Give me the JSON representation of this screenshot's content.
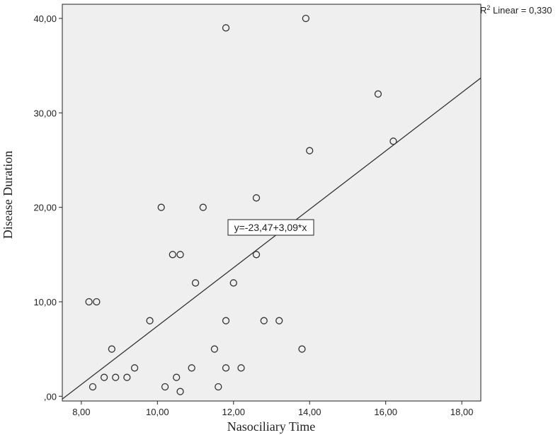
{
  "chart_data": {
    "type": "scatter",
    "xlabel": "Nasociliary Time",
    "ylabel": "Disease Duration",
    "xlim": [
      7.5,
      18.5
    ],
    "ylim": [
      -0.5,
      41.5
    ],
    "xticks": [
      8,
      10,
      12,
      14,
      16,
      18
    ],
    "xtick_labels": [
      "8,00",
      "10,00",
      "12,00",
      "14,00",
      "16,00",
      "18,00"
    ],
    "yticks": [
      0,
      10,
      20,
      30,
      40
    ],
    "ytick_labels": [
      ",00",
      "10,00",
      "20,00",
      "30,00",
      "40,00"
    ],
    "grid": false,
    "plot_background": "#efefef",
    "marker_color": "#333333",
    "points": [
      {
        "x": 8.2,
        "y": 10
      },
      {
        "x": 8.4,
        "y": 10
      },
      {
        "x": 8.3,
        "y": 1
      },
      {
        "x": 8.6,
        "y": 2
      },
      {
        "x": 8.8,
        "y": 5
      },
      {
        "x": 8.9,
        "y": 2
      },
      {
        "x": 9.2,
        "y": 2
      },
      {
        "x": 9.4,
        "y": 3
      },
      {
        "x": 9.8,
        "y": 8
      },
      {
        "x": 10.1,
        "y": 20
      },
      {
        "x": 10.2,
        "y": 1
      },
      {
        "x": 10.4,
        "y": 15
      },
      {
        "x": 10.5,
        "y": 2
      },
      {
        "x": 10.6,
        "y": 15
      },
      {
        "x": 10.6,
        "y": 0.5
      },
      {
        "x": 10.9,
        "y": 3
      },
      {
        "x": 11.0,
        "y": 12
      },
      {
        "x": 11.2,
        "y": 20
      },
      {
        "x": 11.5,
        "y": 5
      },
      {
        "x": 11.6,
        "y": 1
      },
      {
        "x": 11.8,
        "y": 39
      },
      {
        "x": 11.8,
        "y": 8
      },
      {
        "x": 11.8,
        "y": 3
      },
      {
        "x": 12.0,
        "y": 12
      },
      {
        "x": 12.2,
        "y": 3
      },
      {
        "x": 12.6,
        "y": 21
      },
      {
        "x": 12.6,
        "y": 15
      },
      {
        "x": 12.8,
        "y": 8
      },
      {
        "x": 13.2,
        "y": 8
      },
      {
        "x": 13.8,
        "y": 5
      },
      {
        "x": 13.9,
        "y": 40
      },
      {
        "x": 14.0,
        "y": 26
      },
      {
        "x": 15.8,
        "y": 32
      },
      {
        "x": 16.2,
        "y": 27
      }
    ],
    "fit": {
      "type": "linear",
      "intercept": -23.47,
      "slope": 3.09,
      "equation_label": "y=-23,47+3,09*x",
      "r2_prefix": "R",
      "r2_sup": "2",
      "r2_label": " Linear = 0,330"
    }
  }
}
